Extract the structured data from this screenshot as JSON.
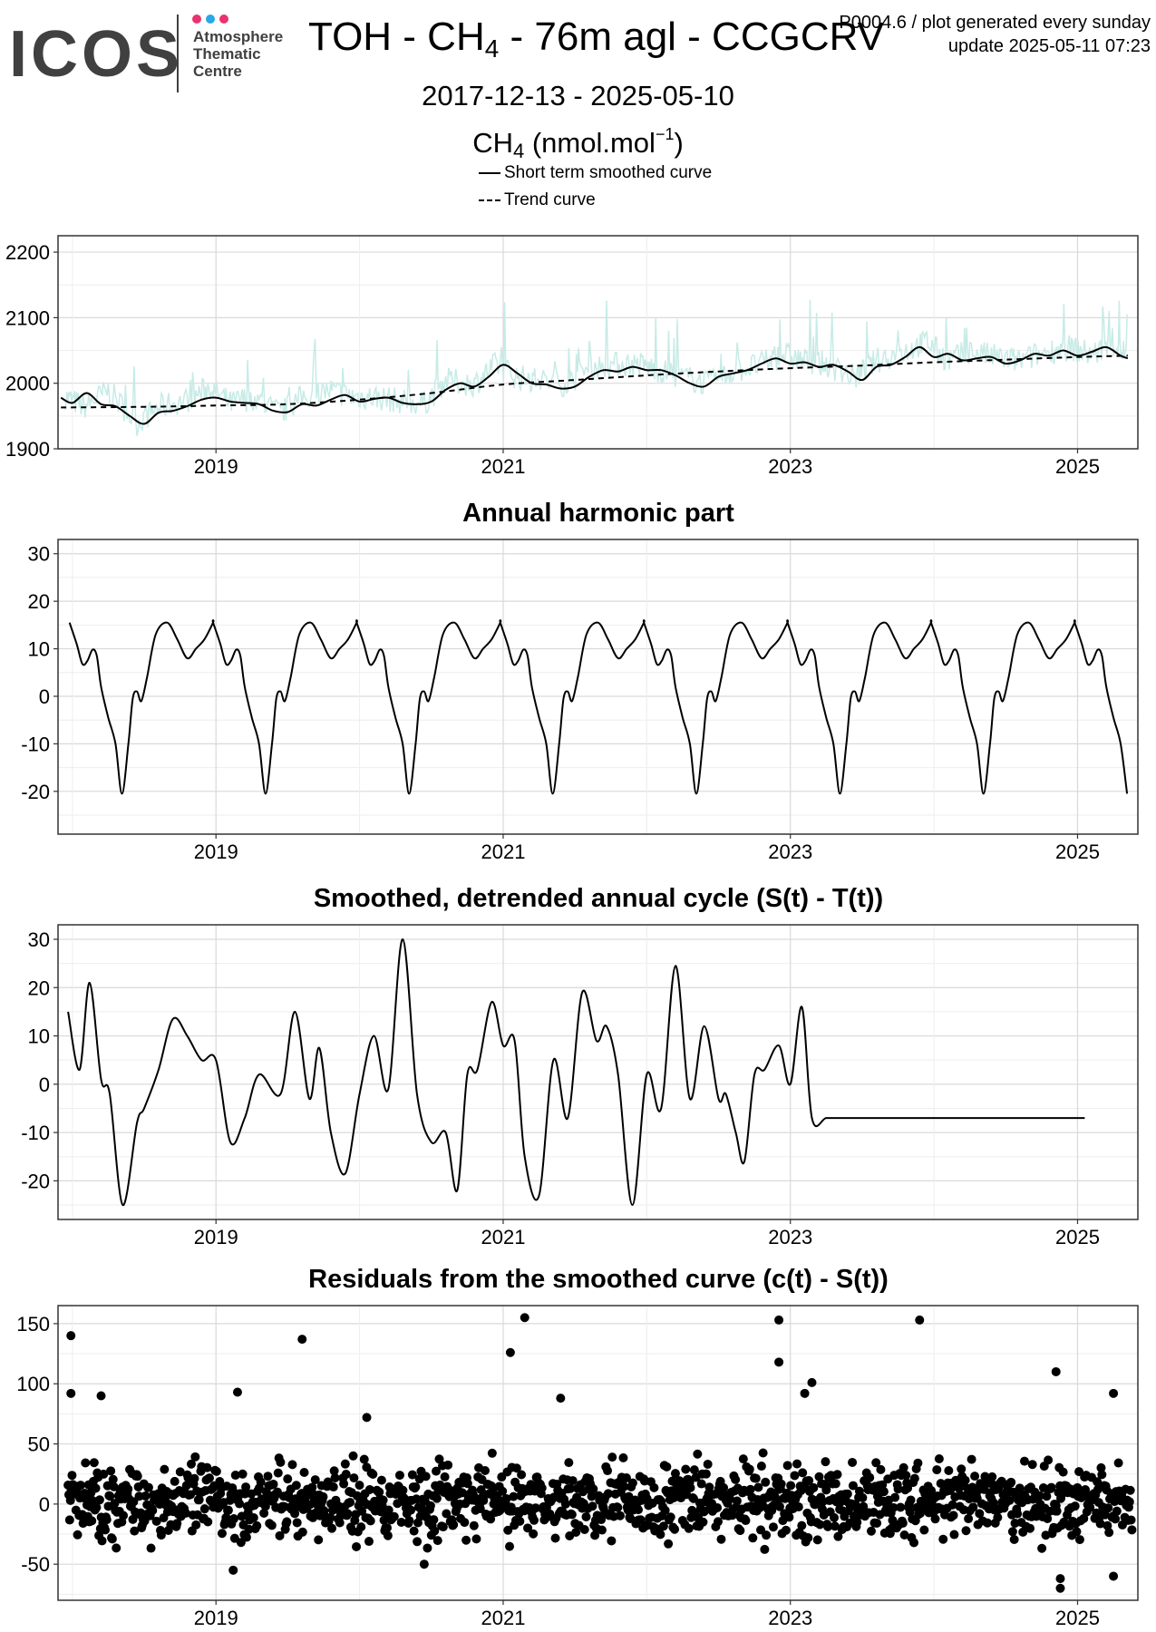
{
  "header": {
    "logo_text": "ICOS",
    "logo_subtitle": [
      "Atmosphere",
      "Thematic",
      "Centre"
    ],
    "title_prefix": "TOH - CH",
    "title_sub": "4",
    "title_suffix": " - 76m agl - CCGCRV",
    "meta_line1": "P0004.6 / plot generated every sunday",
    "meta_line2": "update  2025-05-11 07:23",
    "date_range": "2017-12-13 - 2025-05-10",
    "unit_prefix": "CH",
    "unit_sub": "4",
    "unit_mid": " (nmol.mol",
    "unit_sup": "−1",
    "unit_suffix": ")",
    "legend": [
      "Short term smoothed curve",
      "Trend curve"
    ]
  },
  "colors": {
    "logo_text": "#404040",
    "logo_dots": [
      "#e8336d",
      "#2ba6e8",
      "#e8336d"
    ],
    "raw_series": "#c7ebe6",
    "line": "#000000",
    "grid_major": "#d9d9d9",
    "grid_minor": "#eeeeee",
    "panel_border": "#333333"
  },
  "chart_data": [
    {
      "type": "line",
      "title": "",
      "ylabel": "",
      "xlim": [
        2017.9,
        2025.42
      ],
      "ylim": [
        1900,
        2225
      ],
      "yticks": [
        1900,
        2000,
        2100,
        2200
      ],
      "xticks": [
        2019,
        2021,
        2023,
        2025
      ],
      "grid": true,
      "series": [
        {
          "name": "",
          "style": "raw",
          "x": [
            2017.95,
            2018.08,
            2018.25,
            2018.45,
            2018.6,
            2018.8,
            2018.95,
            2019.1,
            2019.25,
            2019.45,
            2019.6,
            2019.8,
            2019.95,
            2020.1,
            2020.25,
            2020.45,
            2020.6,
            2020.8,
            2020.95,
            2021.1,
            2021.25,
            2021.45,
            2021.6,
            2021.8,
            2021.95,
            2022.1,
            2022.25,
            2022.45,
            2022.6,
            2022.8,
            2022.95,
            2023.1,
            2023.25,
            2023.45,
            2023.6,
            2023.8,
            2023.95,
            2024.1,
            2024.25,
            2024.45,
            2024.6,
            2024.8,
            2024.95,
            2025.1,
            2025.25,
            2025.35
          ],
          "y": [
            1975,
            1960,
            1985,
            1935,
            1960,
            1970,
            1990,
            1965,
            1975,
            1950,
            1975,
            1985,
            1975,
            1975,
            1970,
            1965,
            2000,
            1995,
            2025,
            2005,
            2000,
            1995,
            2020,
            2025,
            2025,
            2015,
            2005,
            1995,
            2015,
            2025,
            2040,
            2030,
            2025,
            2005,
            2030,
            2045,
            2060,
            2030,
            2045,
            2035,
            2030,
            2045,
            2050,
            2040,
            2055,
            2040
          ]
        },
        {
          "name": "Short term smoothed curve",
          "style": "solid",
          "x": [
            2017.92,
            2018.0,
            2018.1,
            2018.2,
            2018.3,
            2018.4,
            2018.5,
            2018.6,
            2018.7,
            2018.8,
            2018.9,
            2019.0,
            2019.1,
            2019.2,
            2019.3,
            2019.4,
            2019.5,
            2019.6,
            2019.7,
            2019.8,
            2019.9,
            2020.0,
            2020.1,
            2020.2,
            2020.3,
            2020.4,
            2020.5,
            2020.6,
            2020.7,
            2020.8,
            2020.9,
            2021.0,
            2021.1,
            2021.2,
            2021.3,
            2021.4,
            2021.5,
            2021.6,
            2021.7,
            2021.8,
            2021.9,
            2022.0,
            2022.1,
            2022.2,
            2022.3,
            2022.4,
            2022.5,
            2022.6,
            2022.7,
            2022.8,
            2022.9,
            2023.0,
            2023.1,
            2023.2,
            2023.3,
            2023.4,
            2023.5,
            2023.6,
            2023.7,
            2023.8,
            2023.9,
            2024.0,
            2024.1,
            2024.2,
            2024.3,
            2024.4,
            2024.5,
            2024.6,
            2024.7,
            2024.8,
            2024.9,
            2025.0,
            2025.1,
            2025.2,
            2025.3,
            2025.35
          ],
          "y": [
            1978,
            1970,
            1985,
            1968,
            1965,
            1950,
            1938,
            1955,
            1958,
            1965,
            1975,
            1978,
            1972,
            1970,
            1968,
            1958,
            1956,
            1968,
            1966,
            1975,
            1982,
            1972,
            1976,
            1978,
            1970,
            1968,
            1972,
            1990,
            2000,
            1995,
            2010,
            2028,
            2015,
            2000,
            1998,
            1992,
            1995,
            2010,
            2020,
            2018,
            2025,
            2020,
            2020,
            2012,
            2000,
            1995,
            2010,
            2015,
            2020,
            2030,
            2038,
            2030,
            2032,
            2025,
            2028,
            2018,
            2005,
            2025,
            2028,
            2040,
            2055,
            2040,
            2045,
            2035,
            2038,
            2040,
            2030,
            2035,
            2045,
            2042,
            2050,
            2042,
            2048,
            2055,
            2042,
            2038
          ]
        },
        {
          "name": "Trend curve",
          "style": "dashed",
          "x": [
            2017.92,
            2018.5,
            2019.0,
            2019.5,
            2020.0,
            2020.5,
            2021.0,
            2021.5,
            2022.0,
            2022.5,
            2023.0,
            2023.5,
            2024.0,
            2024.5,
            2025.0,
            2025.35
          ],
          "y": [
            1963,
            1964,
            1966,
            1968,
            1975,
            1985,
            1998,
            2005,
            2012,
            2018,
            2023,
            2027,
            2032,
            2036,
            2040,
            2042
          ]
        }
      ]
    },
    {
      "type": "line",
      "title": "Annual harmonic part",
      "xlim": [
        2017.9,
        2025.42
      ],
      "ylim": [
        -29,
        33
      ],
      "yticks": [
        -20,
        -10,
        0,
        10,
        20,
        30
      ],
      "xticks": [
        2019,
        2021,
        2023,
        2025
      ],
      "grid": true,
      "series": [
        {
          "name": "",
          "x": [
            0.0,
            0.05,
            0.09,
            0.125,
            0.16,
            0.19,
            0.22,
            0.27,
            0.32,
            0.365,
            0.41,
            0.44,
            0.47,
            0.5,
            0.54,
            0.6,
            0.68,
            0.75,
            0.82,
            0.88,
            0.94,
            1.0
          ],
          "y": [
            15.5,
            11,
            6.8,
            7.5,
            9.8,
            8.5,
            2,
            -4.5,
            -10,
            -20.5,
            -10,
            -0.5,
            1,
            -1,
            4,
            13,
            15.5,
            12,
            8,
            10,
            12,
            15.5
          ]
        }
      ]
    },
    {
      "type": "line",
      "title": "Smoothed, detrended annual cycle (S(t) - T(t))",
      "xlim": [
        2017.9,
        2025.42
      ],
      "ylim": [
        -28,
        33
      ],
      "yticks": [
        -20,
        -10,
        0,
        10,
        20,
        30
      ],
      "xticks": [
        2019,
        2021,
        2023,
        2025
      ],
      "grid": true,
      "series": [
        {
          "name": "",
          "x": [
            2017.97,
            2018.05,
            2018.12,
            2018.2,
            2018.26,
            2018.35,
            2018.45,
            2018.5,
            2018.6,
            2018.7,
            2018.8,
            2018.9,
            2019.0,
            2019.1,
            2019.2,
            2019.3,
            2019.45,
            2019.55,
            2019.65,
            2019.72,
            2019.8,
            2019.9,
            2020.0,
            2020.1,
            2020.2,
            2020.3,
            2020.4,
            2020.5,
            2020.6,
            2020.68,
            2020.75,
            2020.82,
            2020.92,
            2021.0,
            2021.08,
            2021.15,
            2021.25,
            2021.35,
            2021.45,
            2021.55,
            2021.65,
            2021.72,
            2021.8,
            2021.9,
            2022.0,
            2022.1,
            2022.2,
            2022.3,
            2022.4,
            2022.5,
            2022.55,
            2022.62,
            2022.68,
            2022.75,
            2022.82,
            2022.92,
            2023.0,
            2023.08,
            2023.15,
            2023.25,
            2023.35,
            2023.45,
            2023.52,
            2023.6,
            2023.7,
            2023.8,
            2023.88,
            2023.95,
            2024.02,
            2024.08,
            2024.15,
            2024.22,
            2024.3,
            2024.38,
            2024.45,
            2024.5,
            2024.58,
            2024.68,
            2024.78,
            2024.88,
            2024.98,
            2025.05,
            2025.12,
            2025.2,
            2025.28,
            2025.35
          ],
          "y": [
            15,
            3,
            21,
            1,
            -2,
            -25,
            -8,
            -5,
            3,
            13.5,
            10,
            5,
            5,
            -12,
            -7,
            2,
            -2,
            15,
            -3,
            7.5,
            -10,
            -18.5,
            -2,
            10,
            -1,
            30,
            -2,
            -12,
            -10,
            -22,
            2,
            3,
            17,
            8,
            9,
            -15,
            -23,
            5,
            -7,
            19,
            9,
            12,
            2,
            -25,
            2,
            -5,
            24.5,
            -3,
            12,
            -3,
            -2,
            -10,
            -16,
            2,
            3,
            8,
            0,
            16,
            -7,
            -7,
            -7,
            -7,
            -7,
            -7,
            -7,
            -7,
            -7,
            -7,
            -7,
            -7,
            -7,
            -7,
            -7,
            -7,
            -7,
            -7,
            -7,
            -7,
            -7,
            -7,
            -7,
            -7,
            -7,
            -7,
            -7,
            -7
          ]
        }
      ]
    },
    {
      "type": "scatter",
      "title": "Residuals from the smoothed curve (c(t) - S(t))",
      "xlim": [
        2017.9,
        2025.42
      ],
      "ylim": [
        -80,
        165
      ],
      "yticks": [
        -50,
        0,
        50,
        100,
        150
      ],
      "xticks": [
        2019,
        2021,
        2023,
        2025
      ],
      "grid": true,
      "outliers": {
        "x": [
          2017.99,
          2017.99,
          2018.2,
          2019.15,
          2019.6,
          2021.05,
          2021.15,
          2021.4,
          2022.92,
          2022.92,
          2023.1,
          2023.15,
          2023.9,
          2024.85,
          2025.25,
          2025.25,
          2024.88,
          2024.88,
          2019.12,
          2020.05,
          2020.45
        ],
        "y": [
          140,
          92,
          90,
          93,
          137,
          126,
          155,
          88,
          153,
          118,
          92,
          101,
          153,
          110,
          92,
          -60,
          -70,
          -62,
          -55,
          72,
          -50
        ]
      },
      "scatter_note": "dense daily residuals, roughly between -40 and +60"
    }
  ]
}
